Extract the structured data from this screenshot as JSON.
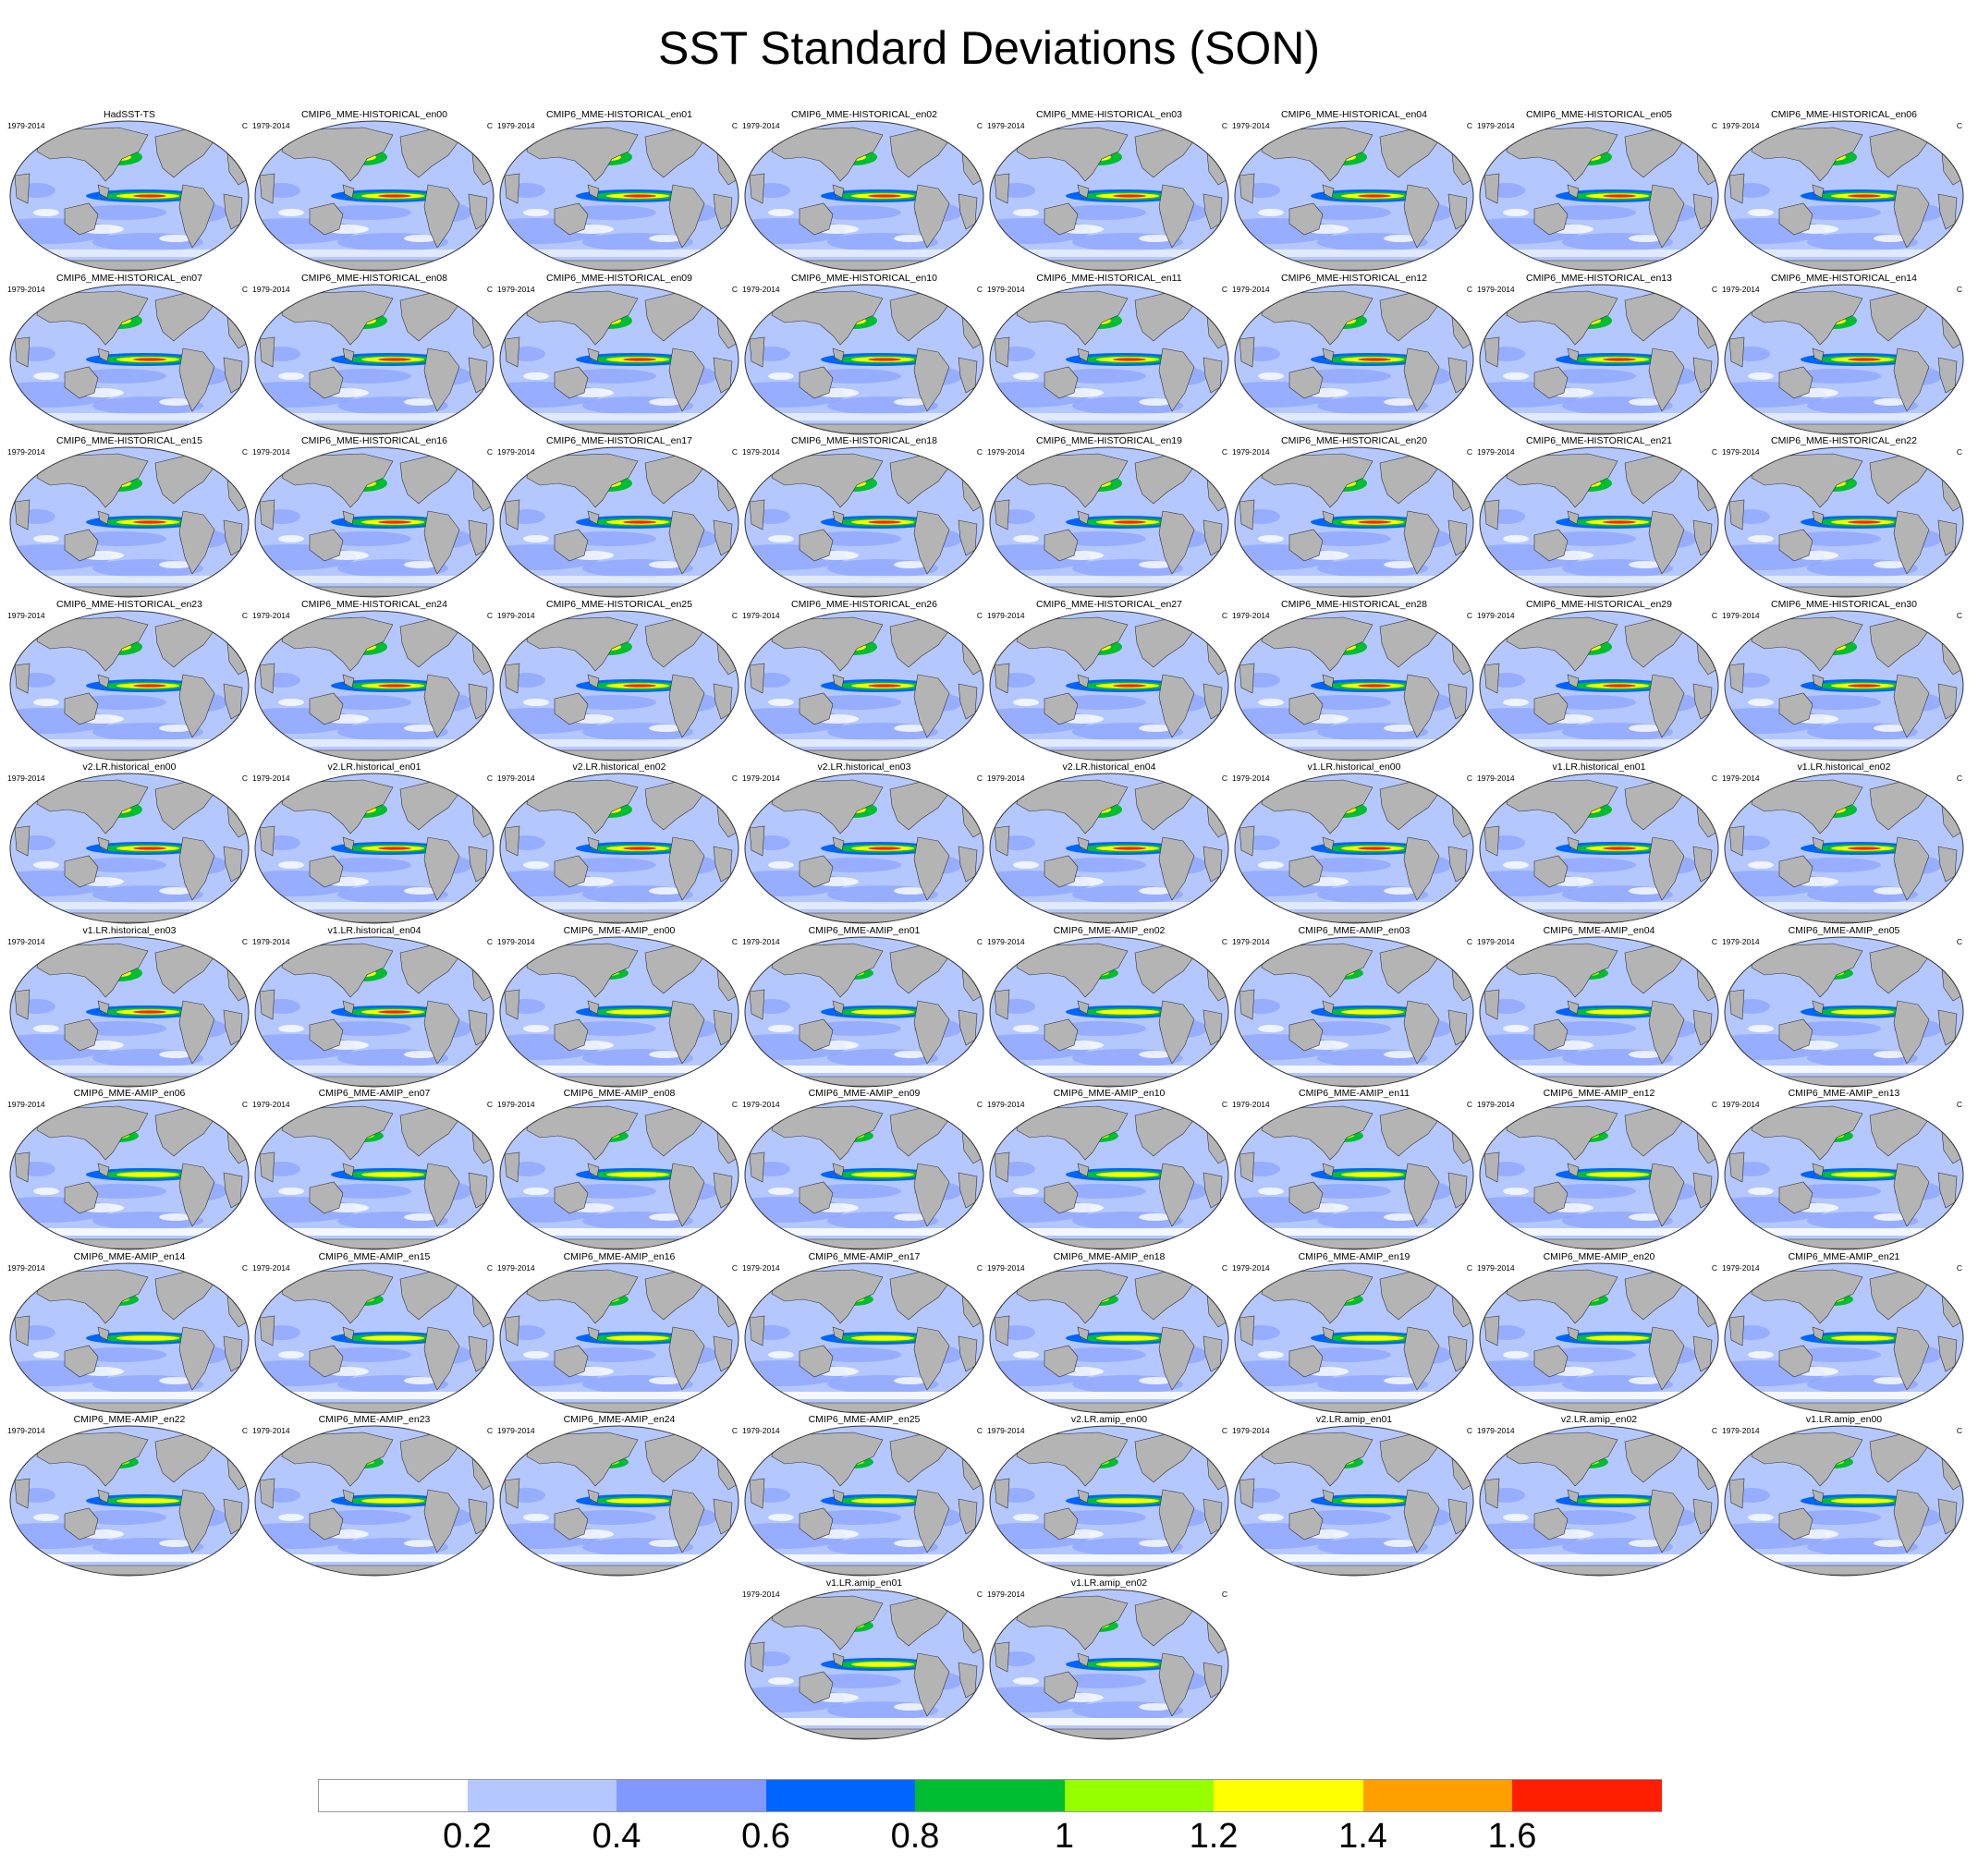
{
  "title": "SST Standard Deviations (SON)",
  "panel_period": "1979-2014",
  "panel_unit": "C",
  "panels": [
    "HadSST-TS",
    "CMIP6_MME-HISTORICAL_en00",
    "CMIP6_MME-HISTORICAL_en01",
    "CMIP6_MME-HISTORICAL_en02",
    "CMIP6_MME-HISTORICAL_en03",
    "CMIP6_MME-HISTORICAL_en04",
    "CMIP6_MME-HISTORICAL_en05",
    "CMIP6_MME-HISTORICAL_en06",
    "CMIP6_MME-HISTORICAL_en07",
    "CMIP6_MME-HISTORICAL_en08",
    "CMIP6_MME-HISTORICAL_en09",
    "CMIP6_MME-HISTORICAL_en10",
    "CMIP6_MME-HISTORICAL_en11",
    "CMIP6_MME-HISTORICAL_en12",
    "CMIP6_MME-HISTORICAL_en13",
    "CMIP6_MME-HISTORICAL_en14",
    "CMIP6_MME-HISTORICAL_en15",
    "CMIP6_MME-HISTORICAL_en16",
    "CMIP6_MME-HISTORICAL_en17",
    "CMIP6_MME-HISTORICAL_en18",
    "CMIP6_MME-HISTORICAL_en19",
    "CMIP6_MME-HISTORICAL_en20",
    "CMIP6_MME-HISTORICAL_en21",
    "CMIP6_MME-HISTORICAL_en22",
    "CMIP6_MME-HISTORICAL_en23",
    "CMIP6_MME-HISTORICAL_en24",
    "CMIP6_MME-HISTORICAL_en25",
    "CMIP6_MME-HISTORICAL_en26",
    "CMIP6_MME-HISTORICAL_en27",
    "CMIP6_MME-HISTORICAL_en28",
    "CMIP6_MME-HISTORICAL_en29",
    "CMIP6_MME-HISTORICAL_en30",
    "v2.LR.historical_en00",
    "v2.LR.historical_en01",
    "v2.LR.historical_en02",
    "v2.LR.historical_en03",
    "v2.LR.historical_en04",
    "v1.LR.historical_en00",
    "v1.LR.historical_en01",
    "v1.LR.historical_en02",
    "v1.LR.historical_en03",
    "v1.LR.historical_en04",
    "CMIP6_MME-AMIP_en00",
    "CMIP6_MME-AMIP_en01",
    "CMIP6_MME-AMIP_en02",
    "CMIP6_MME-AMIP_en03",
    "CMIP6_MME-AMIP_en04",
    "CMIP6_MME-AMIP_en05",
    "CMIP6_MME-AMIP_en06",
    "CMIP6_MME-AMIP_en07",
    "CMIP6_MME-AMIP_en08",
    "CMIP6_MME-AMIP_en09",
    "CMIP6_MME-AMIP_en10",
    "CMIP6_MME-AMIP_en11",
    "CMIP6_MME-AMIP_en12",
    "CMIP6_MME-AMIP_en13",
    "CMIP6_MME-AMIP_en14",
    "CMIP6_MME-AMIP_en15",
    "CMIP6_MME-AMIP_en16",
    "CMIP6_MME-AMIP_en17",
    "CMIP6_MME-AMIP_en18",
    "CMIP6_MME-AMIP_en19",
    "CMIP6_MME-AMIP_en20",
    "CMIP6_MME-AMIP_en21",
    "CMIP6_MME-AMIP_en22",
    "CMIP6_MME-AMIP_en23",
    "CMIP6_MME-AMIP_en24",
    "CMIP6_MME-AMIP_en25",
    "v2.LR.amip_en00",
    "v2.LR.amip_en01",
    "v2.LR.amip_en02",
    "v1.LR.amip_en00",
    "v1.LR.amip_en01",
    "v1.LR.amip_en02"
  ],
  "colorbar": {
    "colors": [
      "#ffffff",
      "#b4c8ff",
      "#8098ff",
      "#0064ff",
      "#00be32",
      "#96ff00",
      "#ffff00",
      "#ffa000",
      "#ff1e00"
    ],
    "labels": [
      "0.2",
      "0.4",
      "0.6",
      "0.8",
      "1",
      "1.2",
      "1.4",
      "1.6"
    ]
  },
  "map_colors": {
    "land": "#b4b4b4",
    "ocean": "#b4c8ff",
    "outline": "#333333"
  }
}
